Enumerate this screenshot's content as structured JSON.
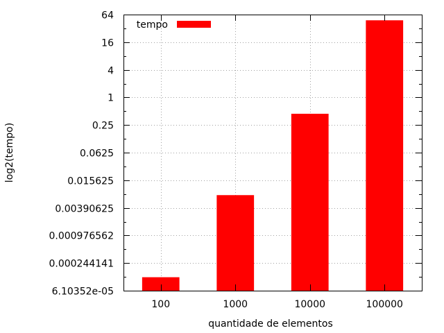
{
  "chart_data": {
    "type": "bar",
    "categories": [
      "100",
      "1000",
      "10000",
      "100000"
    ],
    "series": [
      {
        "name": "tempo",
        "color": "#ff0000",
        "values": [
          0.00012,
          0.0074,
          0.44,
          48
        ]
      }
    ],
    "xlabel": "quantidade de elementos",
    "ylabel": "log2(tempo)",
    "yscale": "log2",
    "ylim": [
      6.10352e-05,
      64
    ],
    "yticks": [
      {
        "value": 6.10352e-05,
        "label": "6.10352e-05"
      },
      {
        "value": 0.000244141,
        "label": "0.000244141"
      },
      {
        "value": 0.000976562,
        "label": "0.000976562"
      },
      {
        "value": 0.00390625,
        "label": "0.00390625"
      },
      {
        "value": 0.015625,
        "label": "0.015625"
      },
      {
        "value": 0.0625,
        "label": "0.0625"
      },
      {
        "value": 0.25,
        "label": "0.25"
      },
      {
        "value": 1,
        "label": "1"
      },
      {
        "value": 4,
        "label": "4"
      },
      {
        "value": 16,
        "label": "16"
      },
      {
        "value": 64,
        "label": "64"
      }
    ],
    "grid": true,
    "legend_position": "top-left"
  }
}
